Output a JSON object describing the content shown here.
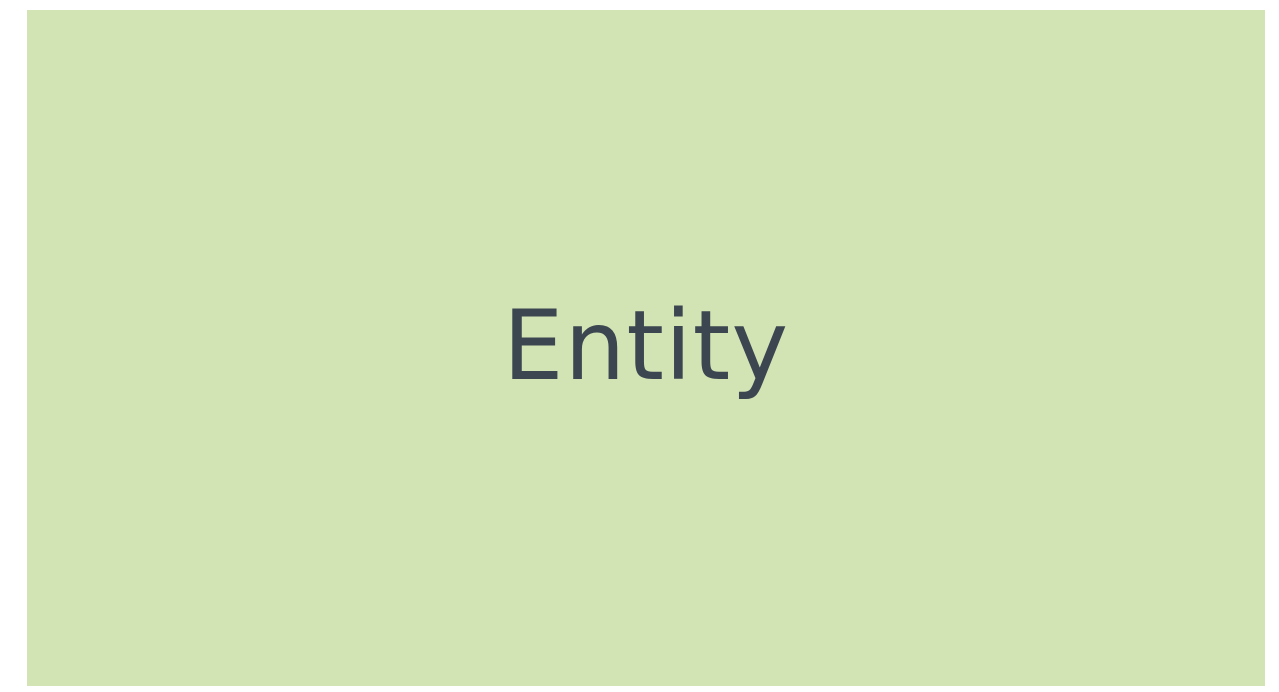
{
  "slide": {
    "title": "Entity",
    "background_color": "#d3e4b4",
    "text_color": "#3b4651"
  }
}
